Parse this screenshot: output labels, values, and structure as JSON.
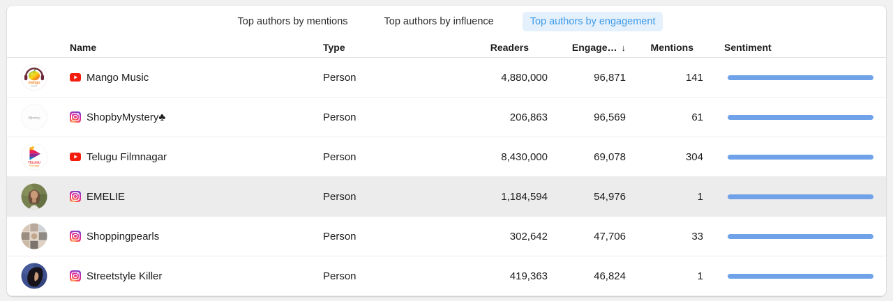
{
  "tabs": [
    {
      "label": "Top authors by mentions",
      "active": false
    },
    {
      "label": "Top authors by influence",
      "active": false
    },
    {
      "label": "Top authors by engagement",
      "active": true
    }
  ],
  "table": {
    "headers": {
      "name": "Name",
      "type": "Type",
      "readers": "Readers",
      "engagement": "Engage…",
      "sort_arrow": "↓",
      "mentions": "Mentions",
      "sentiment": "Sentiment"
    },
    "rows": [
      {
        "name": "Mango Music",
        "platform": "youtube",
        "type": "Person",
        "readers": "4,880,000",
        "engagement": "96,871",
        "mentions": "141",
        "sentiment_pct": "100%",
        "highlighted": false
      },
      {
        "name": "ShopbyMystery♣",
        "platform": "instagram",
        "type": "Person",
        "readers": "206,863",
        "engagement": "96,569",
        "mentions": "61",
        "sentiment_pct": "100%",
        "highlighted": false
      },
      {
        "name": "Telugu Filmnagar",
        "platform": "youtube",
        "type": "Person",
        "readers": "8,430,000",
        "engagement": "69,078",
        "mentions": "304",
        "sentiment_pct": "100%",
        "highlighted": false
      },
      {
        "name": "EMELIE",
        "platform": "instagram",
        "type": "Person",
        "readers": "1,184,594",
        "engagement": "54,976",
        "mentions": "1",
        "sentiment_pct": "100%",
        "highlighted": true
      },
      {
        "name": "Shoppingpearls",
        "platform": "instagram",
        "type": "Person",
        "readers": "302,642",
        "engagement": "47,706",
        "mentions": "33",
        "sentiment_pct": "100%",
        "highlighted": false
      },
      {
        "name": "Streetstyle Killer",
        "platform": "instagram",
        "type": "Person",
        "readers": "419,363",
        "engagement": "46,824",
        "mentions": "1",
        "sentiment_pct": "100%",
        "highlighted": false
      }
    ]
  },
  "colors": {
    "accent_blue": "#3d9be9",
    "active_tab_bg": "#e4f0fb",
    "sentiment_bar": "#6fa2e8",
    "row_highlight": "#ececec",
    "youtube_red": "#f61c0d"
  }
}
